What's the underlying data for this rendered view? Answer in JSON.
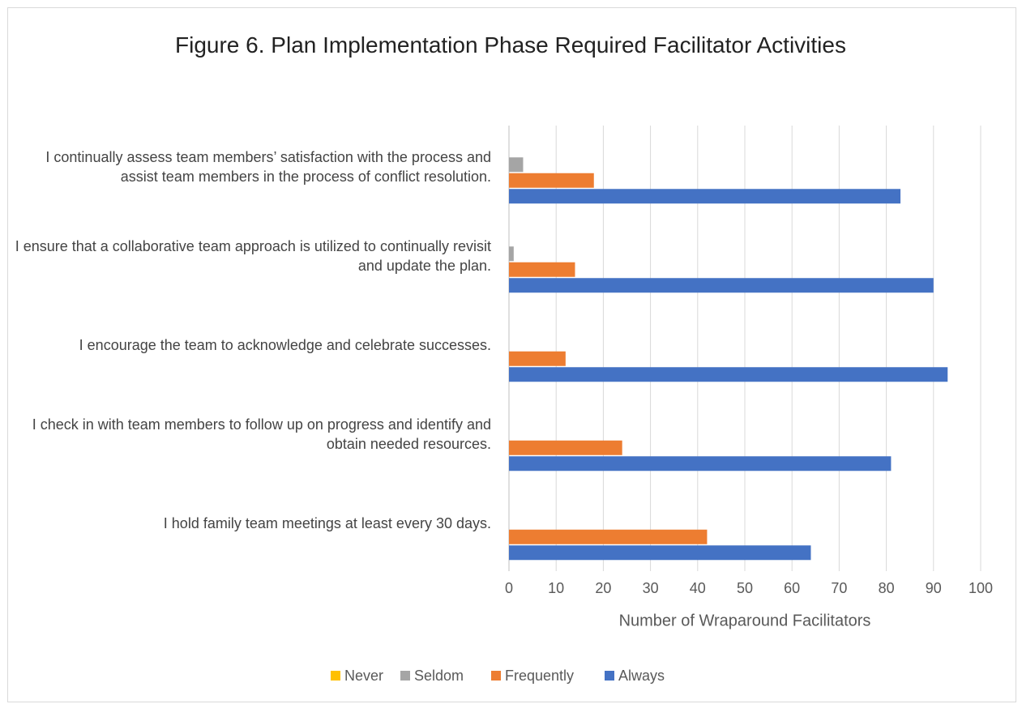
{
  "chart_data": {
    "type": "bar",
    "orientation": "horizontal",
    "title": "Figure 6. Plan Implementation Phase Required Facilitator Activities",
    "x_label": "Number of Wraparound Facilitators",
    "categories": [
      "I continually assess team members’ satisfaction with the process and assist team members in the process of conflict resolution.",
      "I ensure that a collaborative team approach is utilized to continually revisit and update the plan.",
      "I encourage the team to acknowledge and celebrate successes.",
      "I check in with team members to follow up on progress and identify and obtain needed resources.",
      "I hold family team meetings at least every 30 days."
    ],
    "series": [
      {
        "name": "Never",
        "color": "#ffc000",
        "values": [
          0,
          0,
          0,
          0,
          0
        ]
      },
      {
        "name": "Seldom",
        "color": "#a5a5a5",
        "values": [
          3,
          1,
          0,
          0,
          0
        ]
      },
      {
        "name": "Frequently",
        "color": "#ed7d31",
        "values": [
          18,
          14,
          12,
          24,
          42
        ]
      },
      {
        "name": "Always",
        "color": "#4472c4",
        "values": [
          83,
          90,
          93,
          81,
          64
        ]
      }
    ],
    "xlim": [
      0,
      100
    ],
    "xticks": [
      0,
      10,
      20,
      30,
      40,
      50,
      60,
      70,
      80,
      90,
      100
    ],
    "grid": true,
    "legend": "bottom"
  }
}
